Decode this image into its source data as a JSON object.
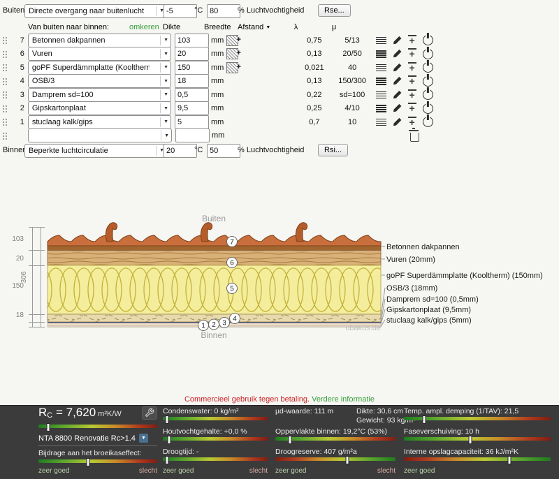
{
  "icons": {
    "select_arrow": "▼"
  },
  "outside": {
    "label": "Buiten:",
    "select": "Directe overgang naar buitenlucht",
    "temp": "-5",
    "temp_unit": "°C",
    "humidity": "80",
    "humidity_label": "% Luchtvochtigheid",
    "button": "Rse..."
  },
  "table": {
    "direction_label": "Van buiten naar binnen:",
    "reverse_link": "omkeren",
    "headers": {
      "dikte": "Dikte",
      "breedte": "Breedte",
      "afstand": "Afstand",
      "lambda": "λ",
      "mu": "μ"
    }
  },
  "layers": [
    {
      "num": "7",
      "material": "Betonnen dakpannen",
      "thickness": "103",
      "unit": "mm",
      "lambda": "0,75",
      "mu": "5/13"
    },
    {
      "num": "6",
      "material": "Vuren",
      "thickness": "20",
      "unit": "mm",
      "lambda": "0,13",
      "mu": "20/50"
    },
    {
      "num": "5",
      "material": "goPF Superdämmplatte (Kooltherm)",
      "thickness": "150",
      "unit": "mm",
      "lambda": "0,021",
      "mu": "40"
    },
    {
      "num": "4",
      "material": "OSB/3",
      "thickness": "18",
      "unit": "mm",
      "lambda": "0,13",
      "mu": "150/300"
    },
    {
      "num": "3",
      "material": "Damprem sd=100",
      "thickness": "0,5",
      "unit": "mm",
      "lambda": "0,22",
      "mu": "sd=100"
    },
    {
      "num": "2",
      "material": "Gipskartonplaat",
      "thickness": "9,5",
      "unit": "mm",
      "lambda": "0,25",
      "mu": "4/10"
    },
    {
      "num": "1",
      "material": "stuclaag kalk/gips",
      "thickness": "5",
      "unit": "mm",
      "lambda": "0,7",
      "mu": "10"
    },
    {
      "num": "",
      "material": "",
      "thickness": "",
      "unit": "mm",
      "lambda": "",
      "mu": ""
    }
  ],
  "inside": {
    "label": "Binnen:",
    "select": "Beperkte luchtcirculatie",
    "temp": "20",
    "temp_unit": "°C",
    "humidity": "50",
    "humidity_label": "% Luchtvochtigheid",
    "button": "Rsi..."
  },
  "diagram": {
    "top_label": "Buiten",
    "bottom_label": "Binnen",
    "watermark": "ubakus.de",
    "total_height": "306",
    "dim_labels": [
      "103",
      "20",
      "150",
      "18"
    ],
    "markers": [
      "1",
      "2",
      "3",
      "4",
      "5",
      "6",
      "7"
    ],
    "layer_labels": [
      "Betonnen dakpannen",
      "Vuren (20mm)",
      "goPF Superdämmplatte (Kooltherm) (150mm)",
      "OSB/3 (18mm)",
      "Damprem sd=100 (0,5mm)",
      "Gipskartonplaat (9,5mm)",
      "stuclaag kalk/gips (5mm)"
    ]
  },
  "notice": {
    "commercial": "Commercieel gebruik tegen betaling.",
    "more_info": "Verdere informatie"
  },
  "results": {
    "rc": {
      "prefix": "R",
      "sub": "C",
      "value": " = 7,620",
      "unit": "m²K/W",
      "pct": 8
    },
    "nta": {
      "label": "NTA 8800 Renovatie Rc>1.4"
    },
    "greenhouse": {
      "label": "Bijdrage aan het broeikaseffect:",
      "pct": 42
    },
    "condensate": {
      "label": "Condenswater: 0 kg/m²",
      "pct": 4
    },
    "wood_moisture": {
      "label": "Houtvochtgehalte: +0,0 %",
      "pct": 6
    },
    "drying_time": {
      "label": "Droogtijd: -",
      "pct": 4
    },
    "ud_value": "µd-waarde: 111 m",
    "thickness": "Dikte: 30,6 cm",
    "weight": "Gewicht: 93 kg/m²",
    "surface": {
      "label": "Oppervlakte binnen: 19,2°C (53%)",
      "pct": 12
    },
    "drying_reserve": {
      "label": "Droogreserve: 407 g/m²a",
      "pct": 60
    },
    "temp_ampl": {
      "label": "Temp. ampl. demping (1/TAV): 21,5",
      "pct": 14
    },
    "phase_shift": {
      "label": "Faseverschuiving: 10 h",
      "pct": 45
    },
    "storage": {
      "label": "Interne opslagcapaciteit: 36 kJ/m²K",
      "pct": 72
    },
    "scale_good": "zeer goed",
    "scale_bad": "slecht"
  }
}
